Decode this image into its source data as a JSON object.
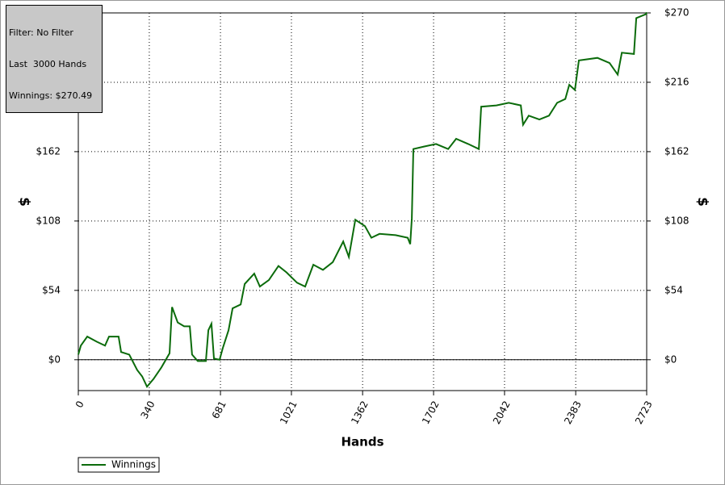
{
  "info": {
    "filter": "Filter: No Filter",
    "hands": "Last  3000 Hands",
    "winnings": "Winnings: $270.49"
  },
  "chart_data": {
    "type": "line",
    "xlabel": "Hands",
    "ylabel": "$",
    "y2label": "$",
    "xlim": [
      0,
      2723
    ],
    "ylim": [
      -24,
      270
    ],
    "xticks": [
      0,
      340,
      681,
      1021,
      1362,
      1702,
      2042,
      2383,
      2723
    ],
    "yticks": [
      {
        "value": 0,
        "label": "$0"
      },
      {
        "value": 54,
        "label": "$54"
      },
      {
        "value": 108,
        "label": "$108"
      },
      {
        "value": 162,
        "label": "$162"
      },
      {
        "value": 216,
        "label": "$216"
      },
      {
        "value": 270,
        "label": "$270"
      }
    ],
    "grid": true,
    "legend": "bottom-left",
    "series": [
      {
        "name": "Winnings",
        "color": "#0b6b0b",
        "x": [
          0,
          12,
          43,
          89,
          128,
          147,
          193,
          205,
          244,
          282,
          306,
          329,
          360,
          398,
          437,
          449,
          476,
          507,
          534,
          545,
          572,
          611,
          623,
          638,
          650,
          677,
          692,
          720,
          739,
          778,
          797,
          843,
          870,
          913,
          959,
          998,
          1048,
          1087,
          1126,
          1172,
          1219,
          1269,
          1296,
          1327,
          1373,
          1404,
          1443,
          1520,
          1578,
          1590,
          1598,
          1605,
          1656,
          1714,
          1772,
          1810,
          1868,
          1919,
          1930,
          2003,
          2062,
          2120,
          2131,
          2158,
          2209,
          2255,
          2294,
          2333,
          2352,
          2379,
          2398,
          2487,
          2545,
          2584,
          2604,
          2662,
          2673,
          2719,
          2723
        ],
        "values": [
          4,
          11,
          18,
          14,
          11,
          18,
          18,
          6,
          4,
          -8,
          -13,
          -21,
          -15,
          -6,
          5,
          41,
          29,
          26,
          26,
          4,
          -1,
          -1,
          23,
          28,
          1,
          0,
          9,
          23,
          40,
          43,
          59,
          67,
          57,
          62,
          73,
          68,
          60,
          57,
          74,
          70,
          76,
          92,
          80,
          109,
          104,
          95,
          98,
          97,
          95,
          90,
          110,
          164,
          166,
          168,
          164,
          172,
          168,
          164,
          197,
          198,
          200,
          198,
          183,
          190,
          187,
          190,
          200,
          203,
          214,
          210,
          233,
          235,
          231,
          222,
          239,
          238,
          266,
          269,
          270.49
        ]
      }
    ]
  }
}
